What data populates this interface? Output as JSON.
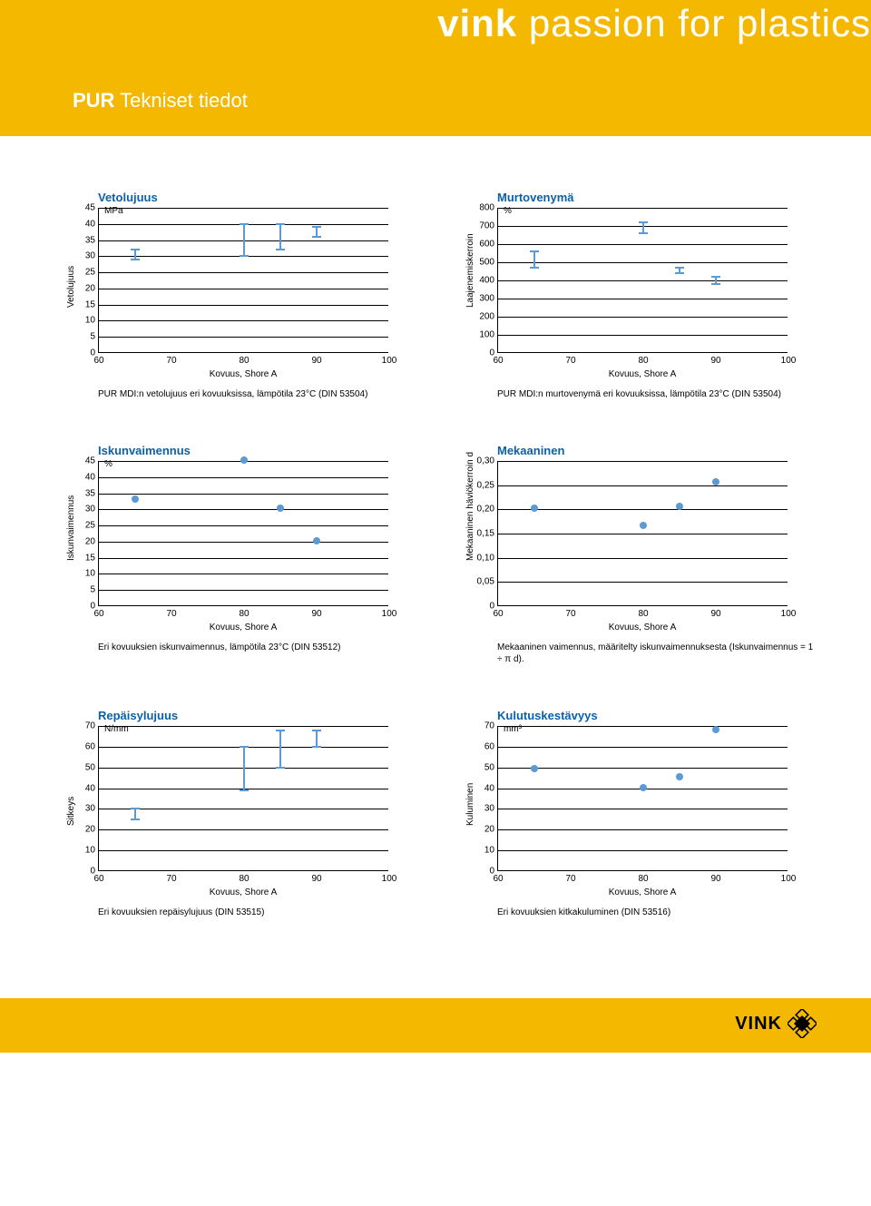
{
  "brand": {
    "bold": "vink",
    "light": " passion for plastics"
  },
  "page_title": {
    "bold": "PUR",
    "light": " Tekniset tiedot"
  },
  "x_axis_label": "Kovuus, Shore A",
  "x_ticks": [
    60,
    70,
    80,
    90,
    100
  ],
  "grid_color": "#000000",
  "series_blue": "#5b9bd5",
  "charts": [
    {
      "id": "vetolujuus",
      "title": "Vetolujuus",
      "unit": "MPa",
      "y_label": "Vetolujuus",
      "y_min": 0,
      "y_max": 45,
      "y_step": 5,
      "type": "errorbar",
      "data": [
        {
          "x": 65,
          "low": 29,
          "high": 32
        },
        {
          "x": 80,
          "low": 30,
          "high": 40
        },
        {
          "x": 85,
          "low": 32,
          "high": 40
        },
        {
          "x": 90,
          "low": 36,
          "high": 39
        }
      ],
      "caption": "PUR MDI:n vetolujuus eri kovuuksissa, lämpötila 23°C (DIN 53504)"
    },
    {
      "id": "murtovenyma",
      "title": "Murtovenymä",
      "unit": "%",
      "y_label": "Laajenemiskerroin",
      "y_min": 0,
      "y_max": 800,
      "y_step": 100,
      "type": "errorbar",
      "data": [
        {
          "x": 65,
          "low": 470,
          "high": 560
        },
        {
          "x": 80,
          "low": 660,
          "high": 720
        },
        {
          "x": 85,
          "low": 440,
          "high": 470
        },
        {
          "x": 90,
          "low": 380,
          "high": 420
        }
      ],
      "caption": "PUR MDI:n murtovenymä eri kovuuksissa, lämpötila 23°C (DIN 53504)"
    },
    {
      "id": "iskunvaimennus",
      "title": "Iskunvaimennus",
      "unit": "%",
      "y_label": "Iskunvaimennus",
      "y_min": 0,
      "y_max": 45,
      "y_step": 5,
      "type": "scatter",
      "data": [
        {
          "x": 65,
          "y": 33
        },
        {
          "x": 80,
          "y": 45
        },
        {
          "x": 85,
          "y": 30
        },
        {
          "x": 90,
          "y": 20
        }
      ],
      "caption": "Eri kovuuksien iskunvaimennus, lämpötila 23°C (DIN 53512)"
    },
    {
      "id": "mekaaninen",
      "title": "Mekaaninen",
      "unit": "",
      "y_label": "Mekaaninen häviökerroin d",
      "y_min": 0,
      "y_max": 0.3,
      "y_step": 0.05,
      "y_format": "comma2",
      "type": "scatter",
      "data": [
        {
          "x": 65,
          "y": 0.2
        },
        {
          "x": 80,
          "y": 0.165
        },
        {
          "x": 85,
          "y": 0.205
        },
        {
          "x": 90,
          "y": 0.255
        }
      ],
      "caption": "Mekaaninen vaimennus, määritelty iskunvaimennuksesta (Iskunvaimennus = 1 ÷ π d)."
    },
    {
      "id": "repaisylujuus",
      "title": "Repäisylujuus",
      "unit": "N/mm",
      "y_label": "Sitkeys",
      "y_min": 0,
      "y_max": 70,
      "y_step": 10,
      "type": "errorbar",
      "data": [
        {
          "x": 65,
          "low": 25,
          "high": 30
        },
        {
          "x": 80,
          "low": 39,
          "high": 60
        },
        {
          "x": 85,
          "low": 50,
          "high": 68
        },
        {
          "x": 90,
          "low": 60,
          "high": 68
        }
      ],
      "caption": "Eri kovuuksien repäisylujuus (DIN 53515)"
    },
    {
      "id": "kulutuskestavyys",
      "title": "Kulutuskestävyys",
      "unit": "mm³",
      "y_label": "Kuluminen",
      "y_min": 0,
      "y_max": 70,
      "y_step": 10,
      "type": "scatter",
      "data": [
        {
          "x": 65,
          "y": 49
        },
        {
          "x": 80,
          "y": 40
        },
        {
          "x": 85,
          "y": 45
        },
        {
          "x": 90,
          "y": 68
        }
      ],
      "caption": "Eri kovuuksien kitkakuluminen (DIN 53516)"
    }
  ],
  "footer_logo_text": "VINK"
}
